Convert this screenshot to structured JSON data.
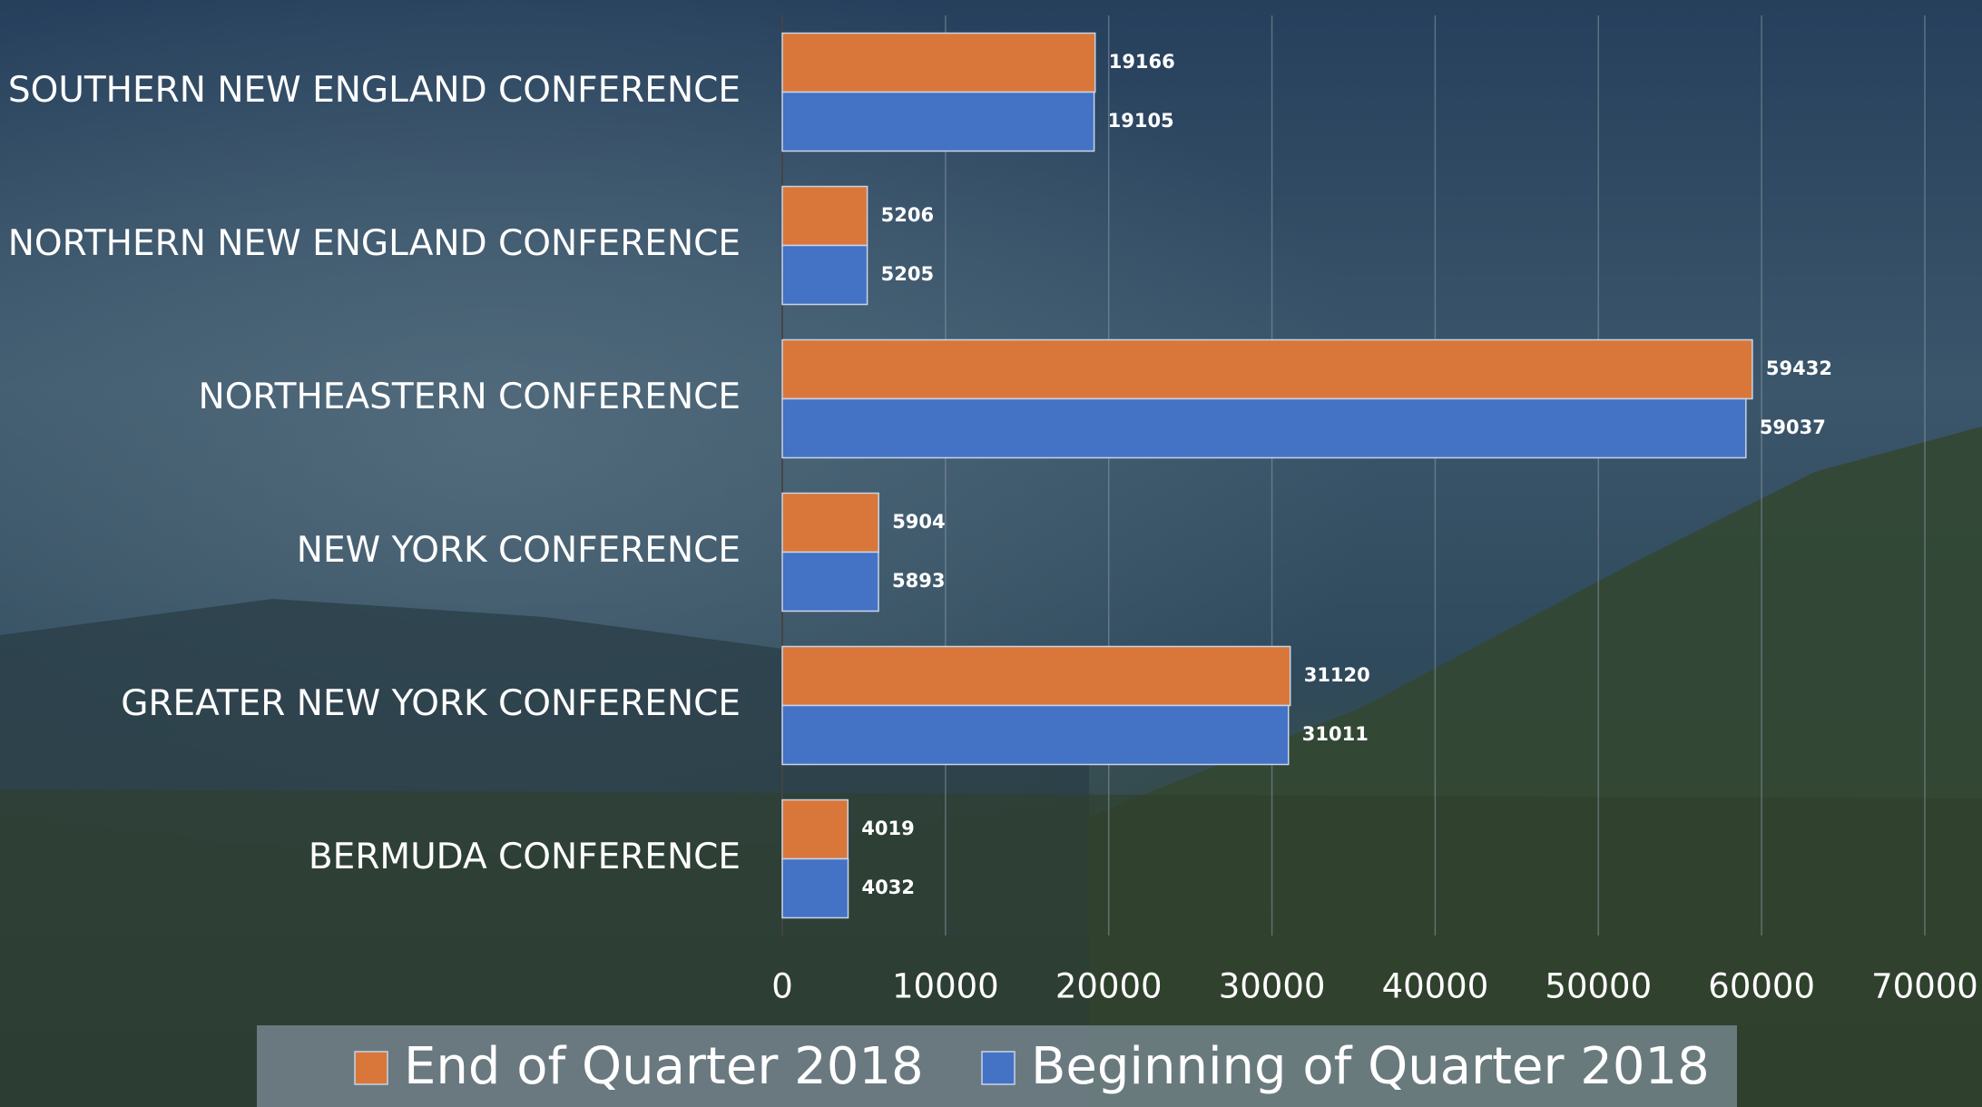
{
  "chart_data": {
    "type": "barh",
    "categories": [
      "SOUTHERN NEW ENGLAND CONFERENCE",
      "NORTHERN NEW ENGLAND CONFERENCE",
      "NORTHEASTERN CONFERENCE",
      "NEW YORK CONFERENCE",
      "GREATER NEW YORK CONFERENCE",
      "BERMUDA CONFERENCE"
    ],
    "series": [
      {
        "name": "End of Quarter 2018",
        "color": "#d9773a",
        "values": [
          19166,
          5206,
          59432,
          5904,
          31120,
          4019
        ]
      },
      {
        "name": "Beginning of Quarter 2018",
        "color": "#4472c4",
        "values": [
          19105,
          5205,
          59037,
          5893,
          31011,
          4032
        ]
      }
    ],
    "xlim": [
      0,
      70000
    ],
    "xticks": [
      0,
      10000,
      20000,
      30000,
      40000,
      50000,
      60000,
      70000
    ],
    "grid": true,
    "legend": "bottom"
  }
}
